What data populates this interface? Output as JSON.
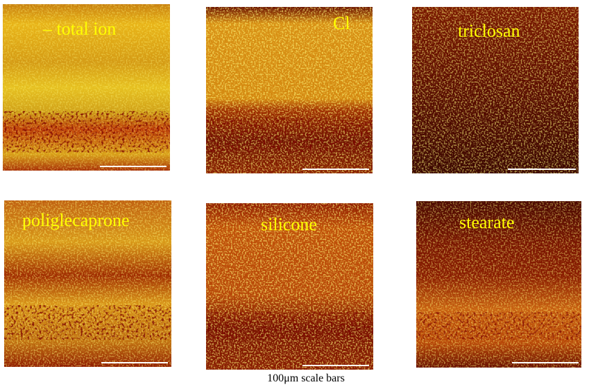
{
  "panels": [
    {
      "label": "– total ion"
    },
    {
      "label": "Cl"
    },
    {
      "label": "triclosan"
    },
    {
      "label": "poliglecaprone"
    },
    {
      "label": "silicone"
    },
    {
      "label": "stearate"
    }
  ],
  "caption": "100μm scale bars"
}
